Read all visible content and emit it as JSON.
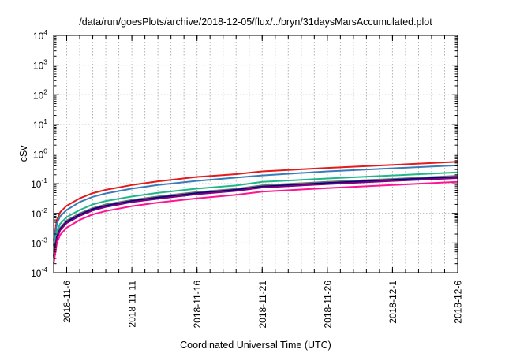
{
  "chart_data": {
    "type": "line",
    "title": "/data/run/goesPlots/archive/2018-12-05/flux/../bryn/31daysMarsAccumulated.plot",
    "xlabel": "Coordinated Universal Time (UTC)",
    "ylabel": "cSv",
    "yscale": "log",
    "ylim": [
      0.0001,
      10000
    ],
    "xlim": [
      "2018-11-05",
      "2018-12-06"
    ],
    "grid": true,
    "legend": "none",
    "x_ticks": [
      "2018-11-6",
      "2018-11-11",
      "2018-11-16",
      "2018-11-21",
      "2018-11-26",
      "2018-12-1",
      "2018-12-6"
    ],
    "y_ticks": [
      {
        "value": 0.0001,
        "base": "10",
        "exp": "-4"
      },
      {
        "value": 0.001,
        "base": "10",
        "exp": "-3"
      },
      {
        "value": 0.01,
        "base": "10",
        "exp": "-2"
      },
      {
        "value": 0.1,
        "base": "10",
        "exp": "-1"
      },
      {
        "value": 1,
        "base": "10",
        "exp": "0"
      },
      {
        "value": 10,
        "base": "10",
        "exp": "1"
      },
      {
        "value": 100,
        "base": "10",
        "exp": "2"
      },
      {
        "value": 1000,
        "base": "10",
        "exp": "3"
      },
      {
        "value": 10000,
        "base": "10",
        "exp": "4"
      }
    ],
    "x": [
      "2018-11-05 00:00",
      "2018-11-05 06:00",
      "2018-11-05 12:00",
      "2018-11-06 00:00",
      "2018-11-07 00:00",
      "2018-11-08 00:00",
      "2018-11-09 00:00",
      "2018-11-11 00:00",
      "2018-11-13 00:00",
      "2018-11-16 00:00",
      "2018-11-19 00:00",
      "2018-11-21 00:00",
      "2018-11-26 00:00",
      "2018-12-01 00:00",
      "2018-12-06 00:00"
    ],
    "series": [
      {
        "color": "#e41a1c",
        "values": [
          0.0012,
          0.006,
          0.011,
          0.018,
          0.032,
          0.048,
          0.062,
          0.09,
          0.12,
          0.17,
          0.21,
          0.26,
          0.34,
          0.43,
          0.55
        ]
      },
      {
        "color": "#377eb8",
        "values": [
          0.0008,
          0.0045,
          0.008,
          0.013,
          0.024,
          0.036,
          0.047,
          0.068,
          0.09,
          0.125,
          0.16,
          0.19,
          0.26,
          0.33,
          0.42
        ]
      },
      {
        "color": "#1fb68a",
        "values": [
          0.0005,
          0.0025,
          0.0045,
          0.0075,
          0.013,
          0.02,
          0.026,
          0.037,
          0.049,
          0.068,
          0.087,
          0.115,
          0.15,
          0.19,
          0.24
        ]
      },
      {
        "color": "#6f6f6f",
        "values": [
          0.0004,
          0.0018,
          0.0033,
          0.0058,
          0.01,
          0.015,
          0.02,
          0.028,
          0.037,
          0.052,
          0.067,
          0.088,
          0.115,
          0.145,
          0.185
        ]
      },
      {
        "color": "#000080",
        "values": [
          0.00035,
          0.0016,
          0.003,
          0.0052,
          0.009,
          0.014,
          0.018,
          0.026,
          0.034,
          0.048,
          0.062,
          0.08,
          0.105,
          0.135,
          0.17
        ]
      },
      {
        "color": "#800080",
        "values": [
          0.0003,
          0.0014,
          0.0027,
          0.0047,
          0.0082,
          0.0125,
          0.0165,
          0.024,
          0.031,
          0.044,
          0.057,
          0.074,
          0.097,
          0.124,
          0.155
        ]
      },
      {
        "color": "#ff1493",
        "values": [
          0.0002,
          0.001,
          0.0019,
          0.0033,
          0.006,
          0.0092,
          0.012,
          0.0175,
          0.023,
          0.032,
          0.042,
          0.054,
          0.071,
          0.09,
          0.115
        ]
      }
    ]
  }
}
